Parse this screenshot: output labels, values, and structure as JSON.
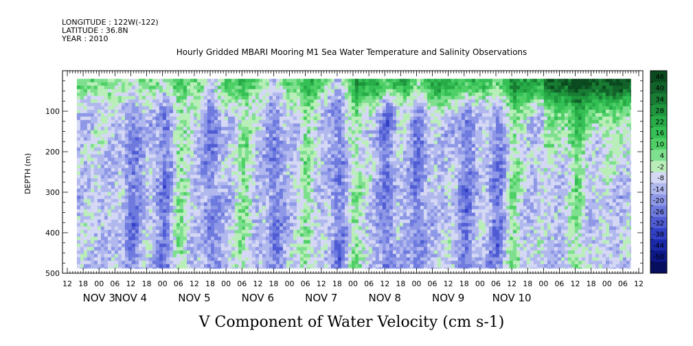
{
  "header": {
    "longitude": "LONGITUDE : 122W(-122)",
    "latitude": "LATITUDE : 36.8N",
    "year": "YEAR : 2010"
  },
  "chart_data": {
    "type": "heatmap",
    "title": "Hourly Gridded MBARI Mooring M1 Sea Water Temperature and Salinity Observations",
    "xlabel": "V Component of Water Velocity (cm s-1)",
    "ylabel": "DEPTH (m)",
    "y_ticks": [
      100,
      200,
      300,
      400,
      500
    ],
    "ylim": [
      500,
      0
    ],
    "x_hour_labels": [
      "12",
      "18",
      "00",
      "06",
      "12",
      "18",
      "00",
      "06",
      "12",
      "18",
      "00",
      "06",
      "12",
      "18",
      "00",
      "06",
      "12",
      "18",
      "00",
      "06",
      "12",
      "18",
      "00",
      "06",
      "12",
      "18",
      "00",
      "06",
      "12",
      "18",
      "00",
      "06",
      "12",
      "18",
      "00",
      "06",
      "12"
    ],
    "x_date_labels": [
      {
        "text": "NOV  3",
        "hour_index": 2
      },
      {
        "text": "NOV  4",
        "hour_index": 4
      },
      {
        "text": "NOV  5",
        "hour_index": 8
      },
      {
        "text": "NOV  6",
        "hour_index": 12
      },
      {
        "text": "NOV  7",
        "hour_index": 16
      },
      {
        "text": "NOV  8",
        "hour_index": 20
      },
      {
        "text": "NOV  9",
        "hour_index": 24
      },
      {
        "text": "NOV 10",
        "hour_index": 28
      }
    ],
    "colorbar": {
      "labels": [
        "46",
        "40",
        "34",
        "28",
        "22",
        "16",
        "10",
        "4",
        "-2",
        "-8",
        "-14",
        "-20",
        "-26",
        "-32",
        "-38",
        "-44",
        "-50"
      ],
      "colors": [
        "#0b4a1f",
        "#12632a",
        "#187c33",
        "#1f953d",
        "#27ac47",
        "#35c055",
        "#4fd067",
        "#7ee08e",
        "#b9eeb9",
        "#d4d8f4",
        "#b1b8ee",
        "#8e98e6",
        "#6e7ade",
        "#4f5cd4",
        "#3140c6",
        "#1a28aa",
        "#0d1786",
        "#070e5e"
      ],
      "data_range": [
        -50,
        52
      ]
    },
    "blue_band_hours": [
      4,
      6,
      9,
      13,
      17,
      20,
      22,
      25,
      27
    ],
    "green_column_hours": [
      7,
      11,
      15,
      18,
      28,
      32
    ],
    "surface_green_max_cm_s": 46
  }
}
